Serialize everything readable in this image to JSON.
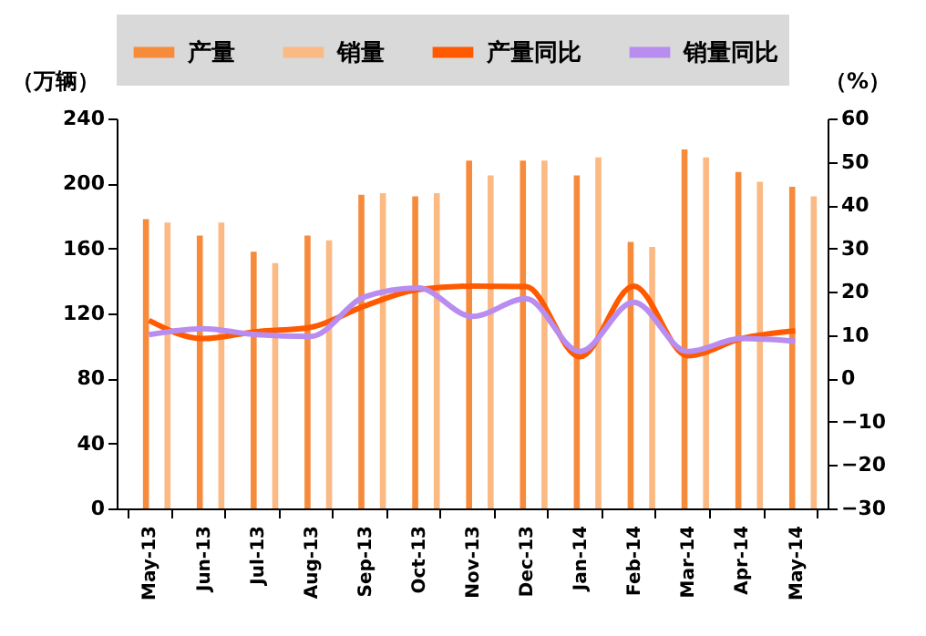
{
  "chart_data": {
    "type": "bar",
    "ylabel": "（万辆）",
    "y2label": "（%）",
    "categories": [
      "May-13",
      "Jun-13",
      "Jul-13",
      "Aug-13",
      "Sep-13",
      "Oct-13",
      "Nov-13",
      "Dec-13",
      "Jan-14",
      "Feb-14",
      "Mar-14",
      "Apr-14",
      "May-14"
    ],
    "series": [
      {
        "name": "产量",
        "color": "#f68b3c",
        "values": [
          178,
          168,
          158,
          168,
          193,
          192,
          214,
          214,
          205,
          164,
          221,
          207,
          198
        ]
      },
      {
        "name": "销量",
        "color": "#fbb983",
        "values": [
          176,
          176,
          151,
          165,
          194,
          194,
          205,
          214,
          216,
          161,
          216,
          201,
          192
        ]
      },
      {
        "name": "产量同比",
        "type": "line",
        "axis": "y2",
        "color": "#ff5a00",
        "values": [
          13.4,
          9.2,
          10.8,
          11.8,
          16.7,
          20.5,
          21.3,
          21.2,
          5.0,
          21.3,
          5.2,
          9.2,
          11.0
        ]
      },
      {
        "name": "销量同比",
        "type": "line",
        "axis": "y2",
        "color": "#b98cf0",
        "values": [
          10.1,
          11.5,
          10.1,
          9.7,
          18.8,
          20.9,
          14.3,
          18.4,
          6.2,
          17.6,
          6.2,
          9.2,
          8.6
        ]
      }
    ],
    "ylim": [
      0,
      240
    ],
    "yticks": [
      0,
      40,
      80,
      120,
      160,
      200,
      240
    ],
    "y2lim": [
      -30,
      60
    ],
    "y2ticks": [
      -30,
      -20,
      -10,
      0,
      10,
      20,
      30,
      40,
      50,
      60
    ],
    "grid": false,
    "legend": "top"
  }
}
